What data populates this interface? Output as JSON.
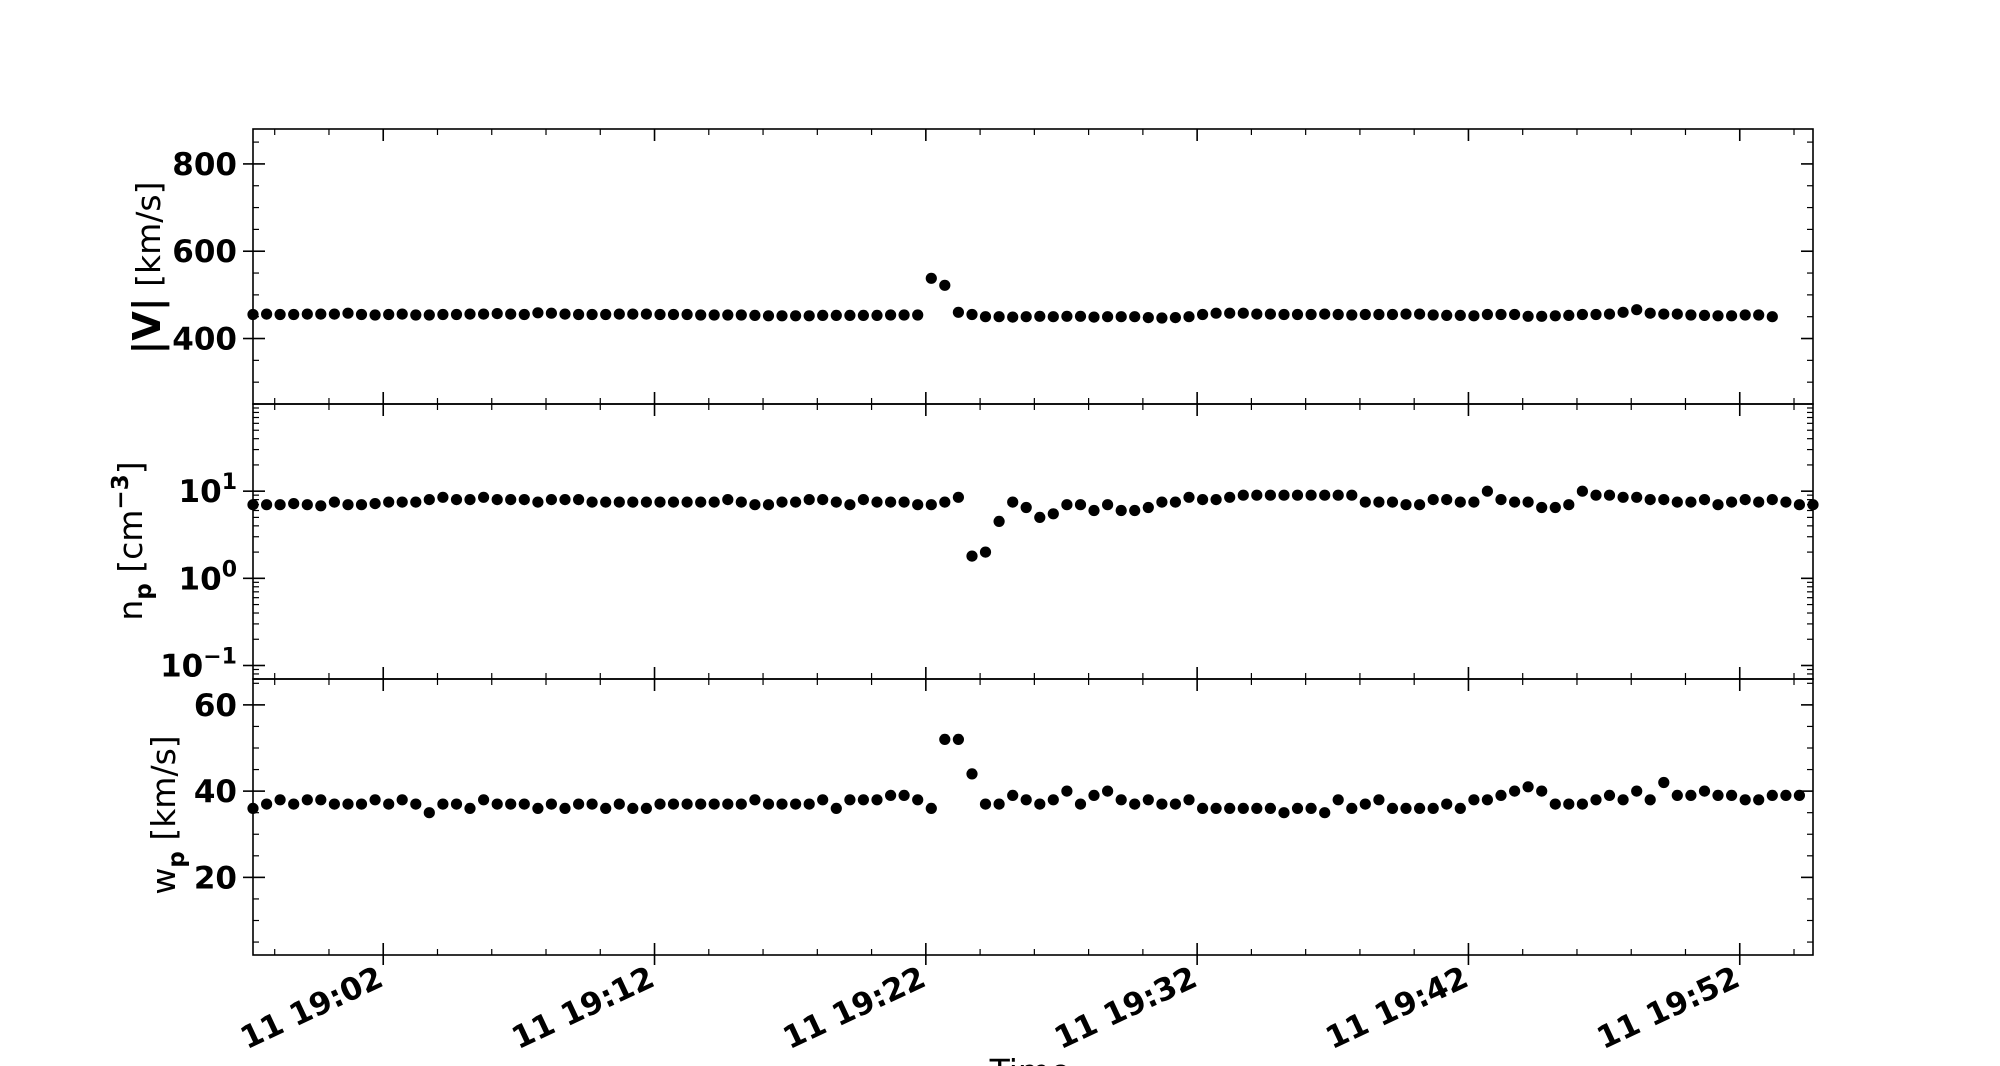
{
  "chart_data": [
    {
      "type": "scatter",
      "panel": "speed",
      "ylabel_main": "|V|",
      "ylabel_unit": " [km/s]",
      "yscale": "linear",
      "ylim": [
        250,
        880
      ],
      "yticks": [
        400,
        600,
        800
      ],
      "ytick_labels": [
        "400",
        "600",
        "800"
      ],
      "color": "#000000",
      "series": [
        {
          "values": [
            455,
            456,
            455,
            455,
            456,
            456,
            456,
            458,
            455,
            454,
            455,
            456,
            454,
            454,
            455,
            455,
            456,
            456,
            457,
            456,
            455,
            459,
            458,
            456,
            455,
            455,
            455,
            456,
            456,
            456,
            455,
            455,
            455,
            454,
            454,
            454,
            454,
            453,
            452,
            452,
            452,
            452,
            453,
            453,
            453,
            453,
            453,
            454,
            454,
            454,
            538,
            522,
            460,
            455,
            450,
            450,
            449,
            450,
            451,
            450,
            451,
            451,
            449,
            450,
            450,
            450,
            448,
            447,
            448,
            450,
            455,
            458,
            458,
            458,
            456,
            456,
            455,
            455,
            455,
            456,
            455,
            454,
            455,
            455,
            455,
            456,
            456,
            454,
            453,
            453,
            452,
            455,
            455,
            455,
            451,
            451,
            452,
            453,
            455,
            455,
            456,
            460,
            466,
            458,
            456,
            456,
            454,
            453,
            452,
            452,
            454,
            454,
            450
          ]
        }
      ]
    },
    {
      "type": "scatter",
      "panel": "density",
      "ylabel_main": "n",
      "ylabel_sub": "p",
      "ylabel_unit": " [cm",
      "ylabel_sup": "−3",
      "ylabel_close": "]",
      "yscale": "log",
      "ylim": [
        0.07,
        100
      ],
      "yticks": [
        0.1,
        1,
        10
      ],
      "ytick_labels": [
        {
          "base": "10",
          "exp": "−1"
        },
        {
          "base": "10",
          "exp": "0"
        },
        {
          "base": "10",
          "exp": "1"
        }
      ],
      "color": "#000000",
      "series": [
        {
          "values": [
            7.0,
            7.0,
            7.0,
            7.2,
            7.0,
            6.8,
            7.5,
            7.0,
            7.0,
            7.2,
            7.5,
            7.5,
            7.5,
            8.0,
            8.5,
            8.0,
            8.0,
            8.5,
            8.0,
            8.0,
            8.0,
            7.5,
            8.0,
            8.0,
            8.0,
            7.5,
            7.5,
            7.5,
            7.5,
            7.5,
            7.5,
            7.5,
            7.5,
            7.5,
            7.5,
            8.0,
            7.5,
            7.0,
            7.0,
            7.5,
            7.5,
            8.0,
            8.0,
            7.5,
            7.0,
            8.0,
            7.5,
            7.5,
            7.5,
            7.0,
            7.0,
            7.5,
            8.5,
            1.8,
            2.0,
            4.5,
            7.5,
            6.5,
            5.0,
            5.5,
            7.0,
            7.0,
            6.0,
            7.0,
            6.0,
            6.0,
            6.5,
            7.5,
            7.5,
            8.5,
            8.0,
            8.0,
            8.5,
            9.0,
            9.0,
            9.0,
            9.0,
            9.0,
            9.0,
            9.0,
            9.0,
            9.0,
            7.5,
            7.5,
            7.5,
            7.0,
            7.0,
            8.0,
            8.0,
            7.5,
            7.5,
            10.0,
            8.0,
            7.5,
            7.5,
            6.5,
            6.5,
            7.0,
            10.0,
            9.0,
            9.0,
            8.5,
            8.5,
            8.0,
            8.0,
            7.5,
            7.5,
            8.0,
            7.0,
            7.5,
            8.0,
            7.5,
            8.0,
            7.5,
            7.0,
            7.0
          ]
        }
      ]
    },
    {
      "type": "scatter",
      "panel": "thermal-speed",
      "ylabel_main": "w",
      "ylabel_sub": "p",
      "ylabel_unit": " [km/s]",
      "yscale": "linear",
      "ylim": [
        2,
        66
      ],
      "yticks": [
        20,
        40,
        60
      ],
      "ytick_labels": [
        "20",
        "40",
        "60"
      ],
      "color": "#000000",
      "series": [
        {
          "values": [
            36,
            37,
            38,
            37,
            38,
            38,
            37,
            37,
            37,
            38,
            37,
            38,
            37,
            35,
            37,
            37,
            36,
            38,
            37,
            37,
            37,
            36,
            37,
            36,
            37,
            37,
            36,
            37,
            36,
            36,
            37,
            37,
            37,
            37,
            37,
            37,
            37,
            38,
            37,
            37,
            37,
            37,
            38,
            36,
            38,
            38,
            38,
            39,
            39,
            38,
            36,
            52,
            52,
            44,
            37,
            37,
            39,
            38,
            37,
            38,
            40,
            37,
            39,
            40,
            38,
            37,
            38,
            37,
            37,
            38,
            36,
            36,
            36,
            36,
            36,
            36,
            35,
            36,
            36,
            35,
            38,
            36,
            37,
            38,
            36,
            36,
            36,
            36,
            37,
            36,
            38,
            38,
            39,
            40,
            41,
            40,
            37,
            37,
            37,
            38,
            39,
            38,
            40,
            38,
            42,
            39,
            39,
            40,
            39,
            39,
            38,
            38,
            39,
            39,
            39
          ]
        }
      ]
    }
  ],
  "shared_x": {
    "label": "Time",
    "start_minute": 57.2,
    "step_minutes": 0.5,
    "xlim_minutes": [
      57.2,
      114.7
    ],
    "tick_minutes": [
      62,
      72,
      82,
      92,
      102,
      112
    ],
    "tick_labels": [
      "11 19:02",
      "11 19:12",
      "11 19:22",
      "11 19:32",
      "11 19:42",
      "11 19:52"
    ]
  }
}
